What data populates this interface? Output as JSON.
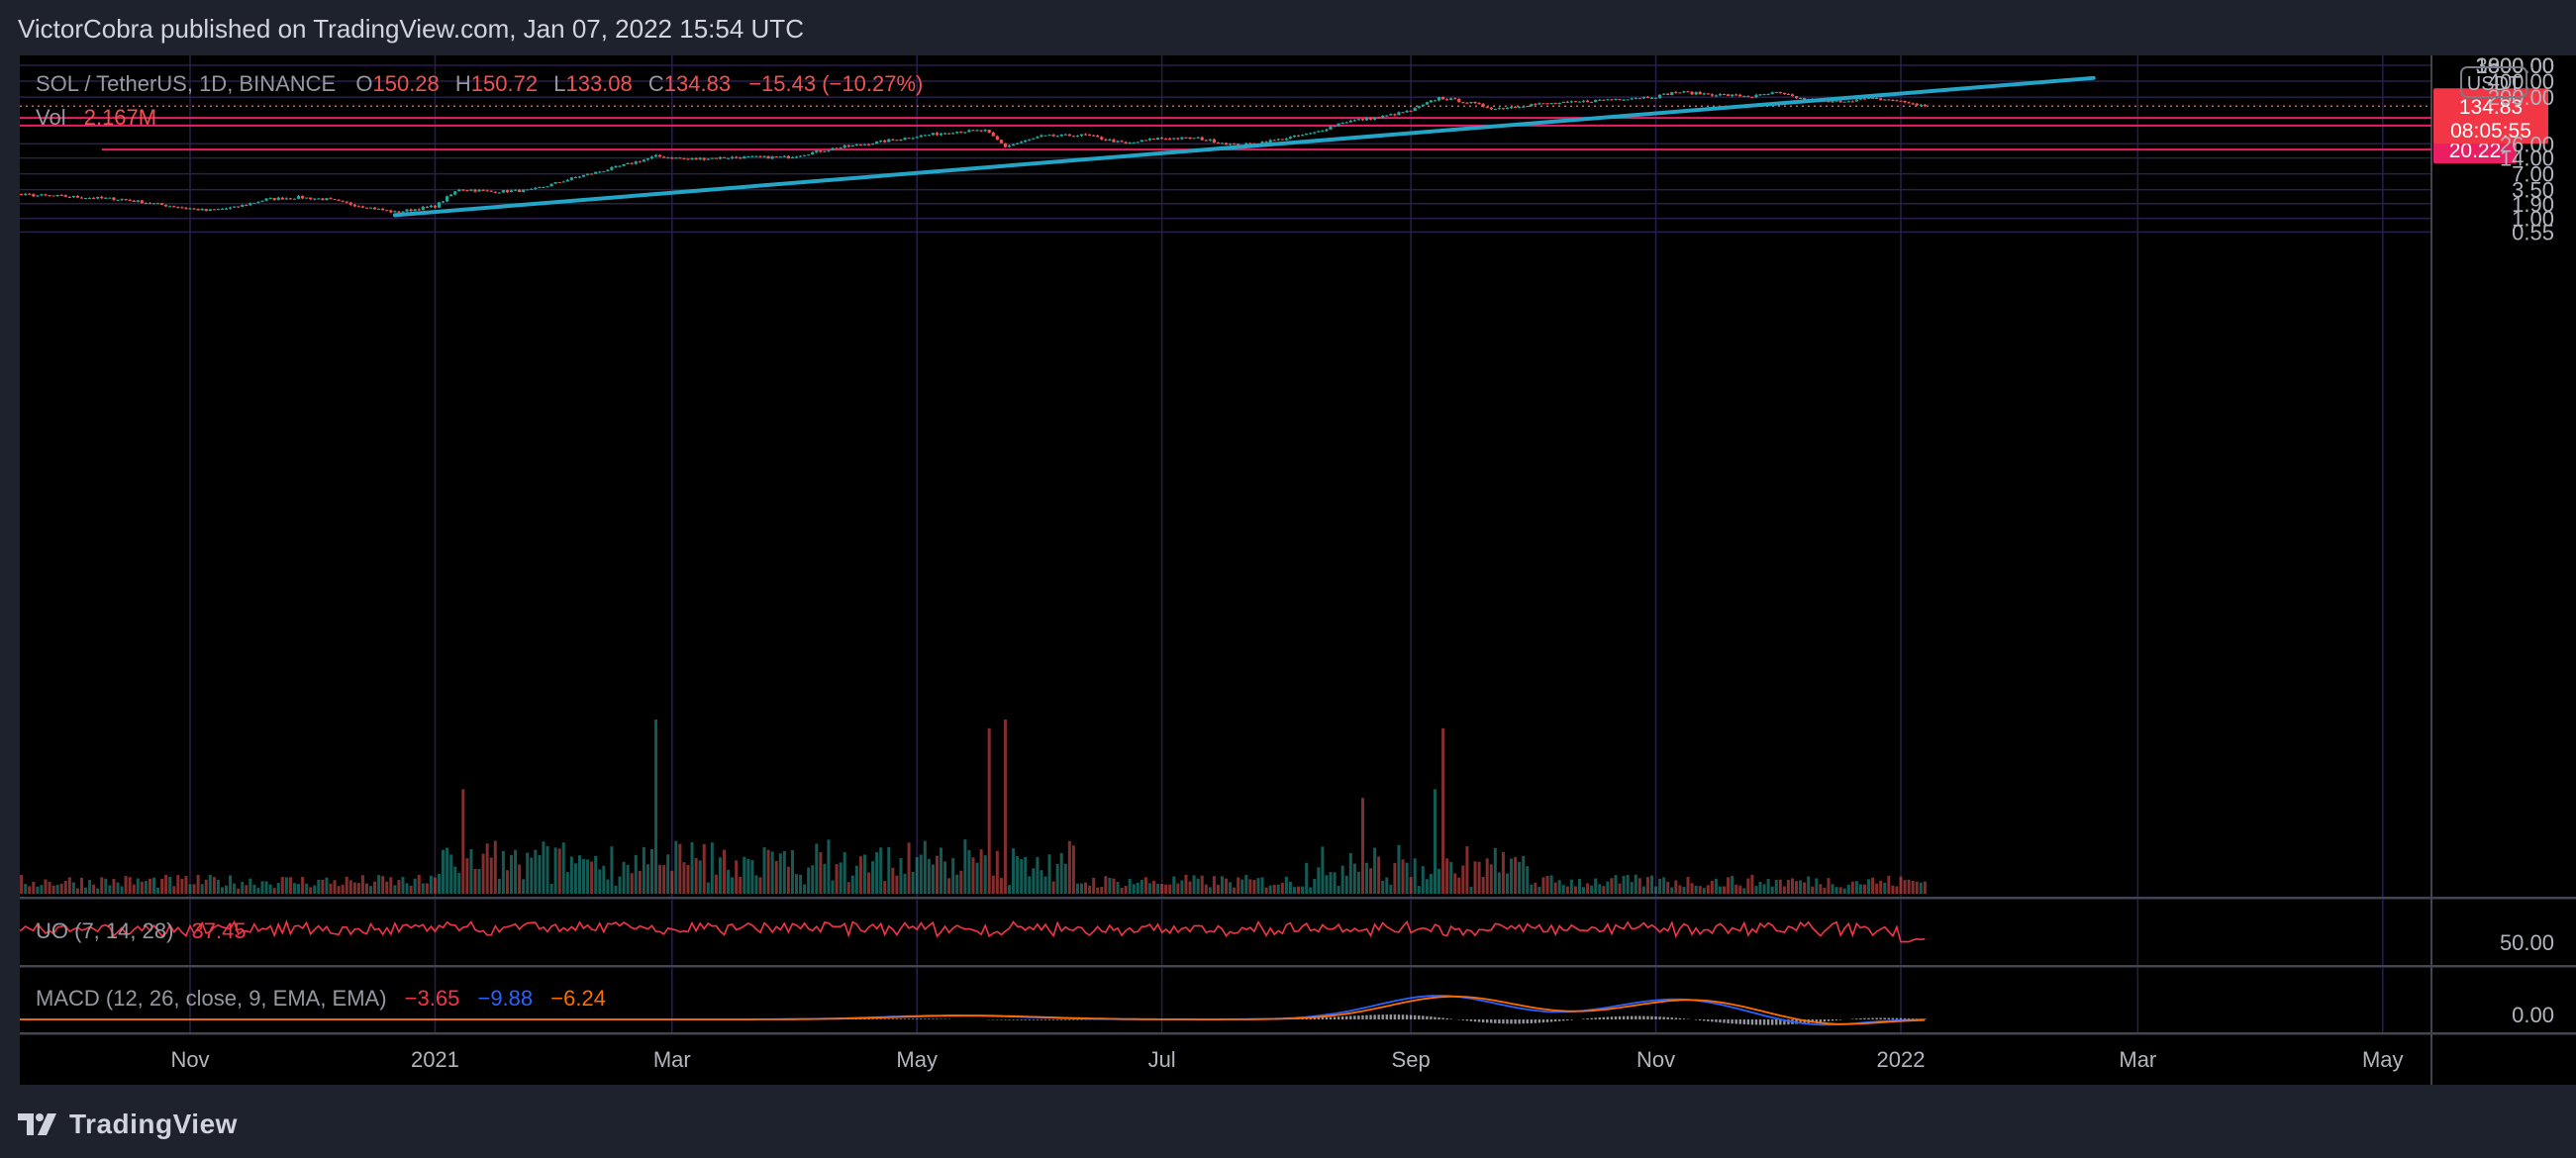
{
  "header": {
    "text": "VictorCobra published on TradingView.com, Jan 07, 2022 15:54 UTC"
  },
  "footer": {
    "brand": "TradingView",
    "logo_icon": "tradingview-logo-icon"
  },
  "colors": {
    "up": "#26a69a",
    "down": "#ef5350",
    "trendline": "#22a5c6",
    "level": "#e91e63",
    "uo": "#f23645",
    "macd": "#2962ff",
    "signal": "#ff6d00",
    "grid": "#2a1f4a"
  },
  "chart_data": {
    "type": "candlestick",
    "symbol_line": {
      "name": "SOL / TetherUS, 1D, BINANCE",
      "o_label": "O",
      "o": "150.28",
      "h_label": "H",
      "h": "150.72",
      "l_label": "L",
      "l": "133.08",
      "c_label": "C",
      "c": "134.83",
      "change": "−15.43 (−10.27%)"
    },
    "volume_line": {
      "label": "Vol",
      "value": "2.167M"
    },
    "price_scale": "log",
    "currency_badge": "USDT",
    "y_ticks": [
      "3000.00",
      "1600.00",
      "800.00",
      "400.00",
      "200.00",
      "26.00",
      "14.00",
      "7.00",
      "3.50",
      "1.90",
      "1.00",
      "0.55"
    ],
    "x_ticks": [
      "Nov",
      "2021",
      "Mar",
      "May",
      "Jul",
      "Sep",
      "Nov",
      "2022",
      "Mar",
      "May"
    ],
    "last_price": {
      "value": "134.83",
      "countdown": "08:05:55"
    },
    "horizontal_levels": [
      "80.52",
      "57.58",
      "20.22"
    ],
    "trendline": {
      "from": [
        "2020-12-22",
        1.15
      ],
      "to": [
        "2022-02-18",
        460
      ]
    },
    "price_path": [
      [
        "2020-09-01",
        3.1
      ],
      [
        "2020-09-10",
        3.3
      ],
      [
        "2020-09-20",
        2.8
      ],
      [
        "2020-10-01",
        2.6
      ],
      [
        "2020-10-15",
        2.3
      ],
      [
        "2020-10-25",
        1.8
      ],
      [
        "2020-11-05",
        1.4
      ],
      [
        "2020-11-12",
        1.6
      ],
      [
        "2020-11-20",
        2.3
      ],
      [
        "2020-11-28",
        2.5
      ],
      [
        "2020-12-05",
        2.3
      ],
      [
        "2020-12-12",
        1.8
      ],
      [
        "2020-12-22",
        1.3
      ],
      [
        "2021-01-01",
        1.7
      ],
      [
        "2021-01-07",
        3.6
      ],
      [
        "2021-01-15",
        3.2
      ],
      [
        "2021-01-25",
        3.4
      ],
      [
        "2021-02-05",
        6.0
      ],
      [
        "2021-02-15",
        9.2
      ],
      [
        "2021-02-25",
        15.0
      ],
      [
        "2021-03-05",
        13.2
      ],
      [
        "2021-03-15",
        14.3
      ],
      [
        "2021-03-30",
        14.5
      ],
      [
        "2021-04-10",
        21
      ],
      [
        "2021-04-20",
        27
      ],
      [
        "2021-05-01",
        36
      ],
      [
        "2021-05-10",
        44
      ],
      [
        "2021-05-18",
        46
      ],
      [
        "2021-05-23",
        23
      ],
      [
        "2021-06-01",
        36
      ],
      [
        "2021-06-12",
        38
      ],
      [
        "2021-06-22",
        26
      ],
      [
        "2021-06-30",
        33
      ],
      [
        "2021-07-10",
        33
      ],
      [
        "2021-07-20",
        24
      ],
      [
        "2021-07-30",
        31
      ],
      [
        "2021-08-08",
        42
      ],
      [
        "2021-08-15",
        67
      ],
      [
        "2021-08-25",
        85
      ],
      [
        "2021-09-01",
        110
      ],
      [
        "2021-09-08",
        195
      ],
      [
        "2021-09-15",
        160
      ],
      [
        "2021-09-22",
        120
      ],
      [
        "2021-10-01",
        145
      ],
      [
        "2021-10-10",
        155
      ],
      [
        "2021-10-20",
        180
      ],
      [
        "2021-11-01",
        205
      ],
      [
        "2021-11-06",
        250
      ],
      [
        "2021-11-15",
        225
      ],
      [
        "2021-11-25",
        205
      ],
      [
        "2021-12-01",
        240
      ],
      [
        "2021-12-08",
        180
      ],
      [
        "2021-12-14",
        160
      ],
      [
        "2021-12-24",
        185
      ],
      [
        "2021-12-30",
        176
      ],
      [
        "2022-01-07",
        134.83
      ]
    ],
    "volume_spikes": [
      [
        "2021-01-08",
        0.6
      ],
      [
        "2021-02-25",
        1.0
      ],
      [
        "2021-05-19",
        0.95
      ],
      [
        "2021-05-23",
        1.0
      ],
      [
        "2021-08-20",
        0.55
      ],
      [
        "2021-09-07",
        0.6
      ],
      [
        "2021-09-09",
        0.95
      ]
    ],
    "oscillators": [
      {
        "name": "UO (7, 14, 28)",
        "value": "37.45",
        "axis_label": "50.00",
        "range": [
          0,
          100
        ],
        "level": 50
      },
      {
        "name": "MACD (12, 26, close, 9, EMA, EMA)",
        "values": [
          "−3.65",
          "−9.88",
          "−6.24"
        ],
        "axis_label": "0.00"
      }
    ]
  }
}
